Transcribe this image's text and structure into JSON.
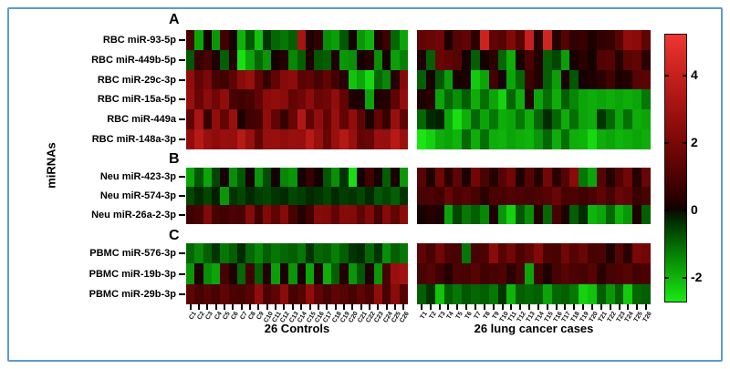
{
  "figure": {
    "y_axis_label": "miRNAs",
    "group_labels": {
      "controls": "26 Controls",
      "cases": "26 lung cancer cases"
    },
    "border_color": "#5b9bd5"
  },
  "colorbar": {
    "tick_labels": [
      "4",
      "2",
      "0",
      "-2"
    ],
    "ticks": [
      4,
      2,
      0,
      -2
    ],
    "high_color": "#e03a3a",
    "mid_color": "#000000",
    "low_color": "#00dd1e"
  },
  "chart_data": {
    "type": "heatmap",
    "value_range": [
      -2.73,
      5.25
    ],
    "legend_position": "right",
    "columns_controls": [
      "C1",
      "C2",
      "C3",
      "C4",
      "C5",
      "C6",
      "C7",
      "C8",
      "C9",
      "C10",
      "C11",
      "C12",
      "C13",
      "C14",
      "C15",
      "C16",
      "C17",
      "C18",
      "C19",
      "C20",
      "C21",
      "C22",
      "C23",
      "C24",
      "C25",
      "C26"
    ],
    "columns_cases": [
      "T1",
      "T2",
      "T3",
      "T4",
      "T5",
      "T6",
      "T7",
      "T8",
      "T9",
      "T10",
      "T11",
      "T12",
      "T13",
      "T14",
      "T15",
      "T16",
      "T17",
      "T18",
      "T19",
      "T20",
      "T21",
      "T22",
      "T23",
      "T24",
      "T25",
      "T26"
    ],
    "panels": [
      {
        "letter": "A",
        "rows": [
          {
            "label": "RBC miR-93-5p",
            "controls": [
              0.9,
              -1.8,
              0.1,
              -1.6,
              0.8,
              0.1,
              -2.0,
              -0.8,
              -2.2,
              -0.4,
              -1.0,
              -1.2,
              -0.9,
              3.2,
              0.2,
              0.5,
              -1.5,
              -1.7,
              -0.8,
              0.1,
              -1.6,
              -2.0,
              0.2,
              0.7,
              -1.0,
              -1.8
            ],
            "cases": [
              1.5,
              1.6,
              1.8,
              0.2,
              1.2,
              1.5,
              0.4,
              4.2,
              1.4,
              1.2,
              2.2,
              1.3,
              4.0,
              0.3,
              4.3,
              0.3,
              1.2,
              0.5,
              0.6,
              0.2,
              0.5,
              0.6,
              1.3,
              2.6,
              2.4,
              1.4
            ]
          },
          {
            "label": "RBC miR-449b-5p",
            "controls": [
              -0.8,
              0.6,
              0.9,
              0.2,
              -0.9,
              0.3,
              -2.6,
              -1.8,
              -1.0,
              -1.6,
              0.1,
              0.3,
              -1.4,
              -0.9,
              0.2,
              -0.8,
              -0.9,
              0.2,
              -1.6,
              -1.5,
              0.1,
              0.3,
              -1.5,
              0.1,
              -1.7,
              -1.3
            ],
            "cases": [
              0.2,
              -0.9,
              1.6,
              1.4,
              1.2,
              0.1,
              -0.9,
              0.1,
              0.4,
              -1.0,
              -1.9,
              0.1,
              1.0,
              0.3,
              -0.9,
              -0.6,
              -1.7,
              0.1,
              0.4,
              0.1,
              1.1,
              1.2,
              0.3,
              1.3,
              1.5,
              0.4
            ]
          },
          {
            "label": "RBC miR-29c-3p",
            "controls": [
              2.6,
              1.5,
              2.0,
              0.9,
              0.8,
              1.4,
              2.4,
              2.8,
              1.4,
              0.6,
              1.5,
              2.3,
              2.5,
              1.3,
              1.4,
              0.9,
              1.5,
              0.8,
              0.4,
              -2.2,
              -1.8,
              -2.5,
              -1.0,
              -1.4,
              0.3,
              2.3
            ],
            "cases": [
              -0.9,
              0.1,
              -0.8,
              -1.7,
              0.1,
              0.2,
              -2.3,
              -1.8,
              0.8,
              0.1,
              -1.8,
              -1.0,
              0.7,
              0.3,
              -0.9,
              -1.7,
              0.2,
              -0.8,
              0.1,
              0.2,
              0.4,
              0.8,
              0.2,
              0.3,
              1.2,
              1.3
            ]
          },
          {
            "label": "RBC miR-15a-5p",
            "controls": [
              2.8,
              1.6,
              2.5,
              1.8,
              2.6,
              0.9,
              0.8,
              0.9,
              1.5,
              2.4,
              2.6,
              2.4,
              1.5,
              1.8,
              2.5,
              1.6,
              1.8,
              2.6,
              1.5,
              0.2,
              0.2,
              -1.8,
              0.2,
              0.3,
              1.4,
              2.6
            ],
            "cases": [
              0.2,
              0.4,
              -1.8,
              -1.0,
              -1.5,
              -0.9,
              -1.9,
              -1.1,
              -1.8,
              -2.4,
              -1.0,
              -1.9,
              0.3,
              -1.8,
              -1.1,
              -1.9,
              -0.9,
              -1.4,
              -1.8,
              -1.9,
              -1.8,
              -1.9,
              -1.8,
              -1.9,
              -1.8,
              -1.2
            ]
          },
          {
            "label": "RBC miR-449a",
            "controls": [
              1.4,
              3.2,
              0.6,
              2.6,
              1.5,
              2.8,
              0.2,
              0.8,
              0.9,
              2.6,
              1.5,
              0.6,
              1.6,
              3.4,
              1.4,
              2.6,
              1.5,
              2.8,
              1.5,
              2.6,
              1.4,
              0.2,
              1.5,
              0.6,
              2.8,
              1.4
            ],
            "cases": [
              -1.0,
              -0.3,
              -0.2,
              -1.8,
              -2.6,
              -1.9,
              -1.0,
              -1.8,
              -1.2,
              -1.9,
              -1.8,
              -1.2,
              -1.9,
              -1.0,
              -0.3,
              -1.0,
              -1.9,
              -1.1,
              -1.8,
              -1.9,
              -0.4,
              -1.0,
              -1.8,
              -1.1,
              -1.9,
              -1.8
            ]
          },
          {
            "label": "RBC miR-148a-3p",
            "controls": [
              2.6,
              3.6,
              2.8,
              2.5,
              2.8,
              2.7,
              3.6,
              2.8,
              1.5,
              2.7,
              2.8,
              2.6,
              2.8,
              2.7,
              3.6,
              2.8,
              1.6,
              2.8,
              3.5,
              2.8,
              1.5,
              1.6,
              2.8,
              2.7,
              3.6,
              2.8
            ],
            "cases": [
              -2.7,
              -2.4,
              -1.9,
              -1.8,
              -2.0,
              -1.0,
              -1.9,
              -1.1,
              -1.9,
              -2.0,
              -1.8,
              -1.9,
              -2.0,
              -1.6,
              -1.0,
              -1.9,
              -1.1,
              -1.9,
              -2.0,
              -2.5,
              -1.9,
              -1.8,
              -2.0,
              -1.9,
              -1.8,
              -1.9
            ]
          }
        ]
      },
      {
        "letter": "B",
        "rows": [
          {
            "label": "Neu miR-423-3p",
            "controls": [
              -1.8,
              -0.8,
              -1.8,
              -0.6,
              0.1,
              -1.5,
              -0.8,
              0.1,
              -1.6,
              -0.7,
              0.1,
              -1.4,
              -1.6,
              0.1,
              0.6,
              0.1,
              -0.8,
              -1.5,
              -0.4,
              -2.6,
              0.1,
              0.8,
              0.1,
              -0.9,
              0.2,
              -1.6
            ],
            "cases": [
              1.2,
              0.2,
              1.8,
              0.4,
              1.4,
              0.2,
              1.8,
              1.0,
              0.3,
              1.2,
              1.8,
              0.2,
              1.2,
              0.3,
              1.9,
              0.4,
              1.2,
              2.4,
              -1.2,
              -1.8,
              1.2,
              0.3,
              1.1,
              1.8,
              0.3,
              1.6
            ]
          },
          {
            "label": "Neu miR-574-3p",
            "controls": [
              -0.6,
              -0.3,
              -0.6,
              -0.2,
              -1.6,
              -0.4,
              -0.6,
              -0.3,
              -0.5,
              -0.6,
              -0.4,
              -0.3,
              -0.6,
              -0.5,
              -0.3,
              -0.4,
              -0.6,
              -0.3,
              -0.5,
              -0.4,
              -0.6,
              -0.3,
              -0.8,
              -0.6,
              -0.9,
              -0.4
            ],
            "cases": [
              0.9,
              1.0,
              0.8,
              1.6,
              1.0,
              1.2,
              0.9,
              0.4,
              1.0,
              0.9,
              1.1,
              1.0,
              0.9,
              1.0,
              1.2,
              1.6,
              0.9,
              1.0,
              0.8,
              1.0,
              1.4,
              0.9,
              1.6,
              1.4,
              0.6,
              0.9
            ]
          },
          {
            "label": "Neu miR-26a-2-3p",
            "controls": [
              0.8,
              0.9,
              2.2,
              0.9,
              0.8,
              1.0,
              0.9,
              2.3,
              0.8,
              2.2,
              1.4,
              2.3,
              0.9,
              0.3,
              0.8,
              2.3,
              2.2,
              1.5,
              2.3,
              2.2,
              1.4,
              2.2,
              0.9,
              2.3,
              1.5,
              2.4
            ],
            "cases": [
              0.1,
              0.3,
              0.2,
              -1.8,
              -0.6,
              -1.2,
              -0.9,
              -1.4,
              0.2,
              -1.6,
              -2.4,
              -0.8,
              -1.5,
              0.3,
              -1.0,
              0.9,
              0.2,
              -0.9,
              -0.3,
              -2.0,
              -1.8,
              -1.0,
              -2.0,
              -1.6,
              0.2,
              -0.9
            ]
          }
        ]
      },
      {
        "letter": "C",
        "rows": [
          {
            "label": "PBMC miR-576-3p",
            "controls": [
              -1.0,
              -1.4,
              -0.9,
              -0.4,
              -1.2,
              -0.9,
              -0.3,
              -1.0,
              -1.4,
              -0.9,
              -1.2,
              -1.0,
              -0.9,
              -1.2,
              -0.4,
              -1.0,
              -0.9,
              -1.3,
              -0.9,
              -0.4,
              -0.3,
              -1.0,
              -0.4,
              -1.5,
              -0.9,
              -1.2
            ],
            "cases": [
              1.4,
              0.9,
              1.8,
              1.0,
              0.9,
              -1.2,
              0.9,
              1.0,
              2.4,
              1.2,
              1.8,
              1.0,
              1.4,
              2.2,
              1.0,
              0.9,
              1.8,
              1.2,
              1.6,
              0.9,
              1.0,
              0.2,
              1.2,
              0.4,
              2.0,
              1.8
            ]
          },
          {
            "label": "PBMC miR-19b-3p",
            "controls": [
              -1.6,
              0.2,
              -1.5,
              -1.8,
              0.9,
              0.2,
              -1.0,
              0.8,
              -0.9,
              0.3,
              -1.7,
              0.2,
              -1.6,
              0.1,
              -1.8,
              0.2,
              -1.9,
              -0.9,
              0.3,
              -1.6,
              -0.8,
              0.2,
              -1.6,
              0.9,
              2.8,
              3.0
            ],
            "cases": [
              0.9,
              1.2,
              0.8,
              0.3,
              1.0,
              0.9,
              1.2,
              0.8,
              0.9,
              1.0,
              0.4,
              0.9,
              -1.8,
              0.8,
              0.2,
              0.9,
              1.2,
              1.0,
              0.9,
              1.2,
              0.4,
              0.9,
              1.0,
              1.2,
              0.8,
              1.0
            ]
          },
          {
            "label": "PBMC miR-29b-3p",
            "controls": [
              1.4,
              0.9,
              1.2,
              0.9,
              1.4,
              1.0,
              0.9,
              1.2,
              2.6,
              1.0,
              1.4,
              2.4,
              0.9,
              1.2,
              2.6,
              1.4,
              0.9,
              1.4,
              1.2,
              0.9,
              1.4,
              1.0,
              2.6,
              0.9,
              2.4,
              1.2
            ],
            "cases": [
              -0.9,
              -0.4,
              -2.2,
              -0.9,
              -1.2,
              -0.8,
              -1.0,
              -0.9,
              -1.2,
              -0.4,
              -2.0,
              -0.9,
              -1.0,
              -0.9,
              -1.8,
              -1.0,
              -0.9,
              -1.2,
              -2.4,
              -2.2,
              -0.9,
              -1.6,
              -0.9,
              -2.3,
              -1.0,
              -0.9
            ]
          }
        ]
      }
    ]
  }
}
